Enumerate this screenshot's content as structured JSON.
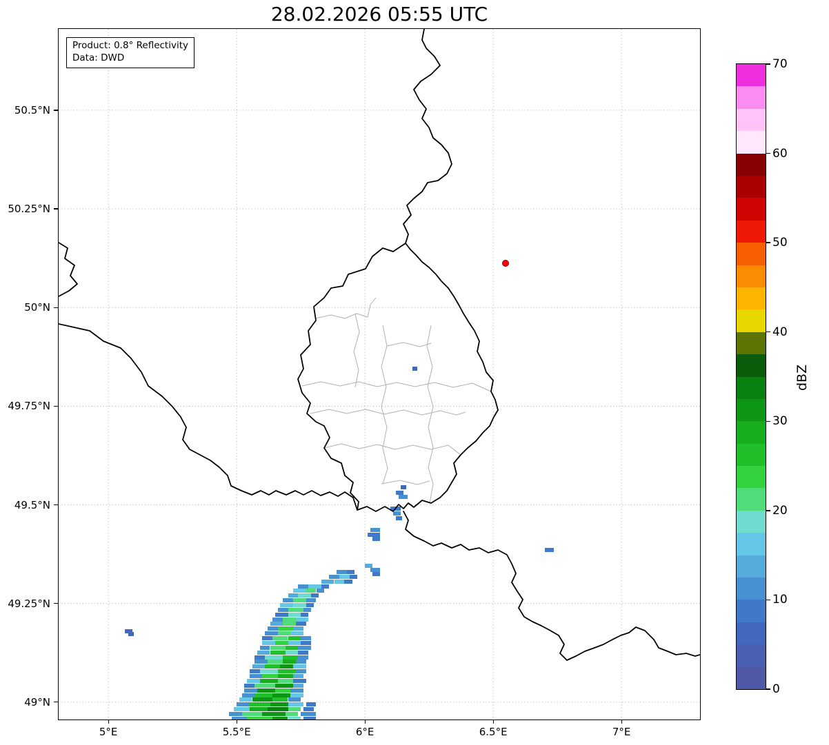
{
  "chart_data": {
    "type": "heatmap",
    "title": "28.02.2026 05:55 UTC",
    "annotation": {
      "product": "Product: 0.8° Reflectivity",
      "source": "Data: DWD"
    },
    "xlabel": "",
    "ylabel": "",
    "grid": true,
    "xlim": [
      4.806,
      7.306
    ],
    "ylim": [
      48.956,
      50.706
    ],
    "x_ticks": [
      {
        "value": 5.0,
        "label": "5°E"
      },
      {
        "value": 5.5,
        "label": "5.5°E"
      },
      {
        "value": 6.0,
        "label": "6°E"
      },
      {
        "value": 6.5,
        "label": "6.5°E"
      },
      {
        "value": 7.0,
        "label": "7°E"
      }
    ],
    "y_ticks": [
      {
        "value": 50.5,
        "label": "50.5°N"
      },
      {
        "value": 50.25,
        "label": "50.25°N"
      },
      {
        "value": 50.0,
        "label": "50°N"
      },
      {
        "value": 49.75,
        "label": "49.75°N"
      },
      {
        "value": 49.5,
        "label": "49.5°N"
      },
      {
        "value": 49.25,
        "label": "49.25°N"
      },
      {
        "value": 49.0,
        "label": "49°N"
      }
    ],
    "radar_site": {
      "lon": 6.547,
      "lat": 50.112,
      "color": "#ff0000"
    },
    "colorbar": {
      "label": "dBZ",
      "min": 0,
      "max": 70,
      "ticks": [
        0,
        10,
        20,
        30,
        40,
        50,
        60,
        70
      ],
      "bands": [
        {
          "from": 0,
          "to": 2.5,
          "color": "#5158a6"
        },
        {
          "from": 2.5,
          "to": 5,
          "color": "#4a5fb1"
        },
        {
          "from": 5,
          "to": 7.5,
          "color": "#4268bc"
        },
        {
          "from": 7.5,
          "to": 10,
          "color": "#3f79c7"
        },
        {
          "from": 10,
          "to": 12.5,
          "color": "#4790d1"
        },
        {
          "from": 12.5,
          "to": 15,
          "color": "#55abdc"
        },
        {
          "from": 15,
          "to": 17.5,
          "color": "#65c6e6"
        },
        {
          "from": 17.5,
          "to": 20,
          "color": "#6fdccf"
        },
        {
          "from": 20,
          "to": 22.5,
          "color": "#50dc78"
        },
        {
          "from": 22.5,
          "to": 25,
          "color": "#33d23f"
        },
        {
          "from": 25,
          "to": 27.5,
          "color": "#21c02b"
        },
        {
          "from": 27.5,
          "to": 30,
          "color": "#16ad1f"
        },
        {
          "from": 30,
          "to": 32.5,
          "color": "#0d9715"
        },
        {
          "from": 32.5,
          "to": 35,
          "color": "#088110"
        },
        {
          "from": 35,
          "to": 37.5,
          "color": "#0a5c0a"
        },
        {
          "from": 37.5,
          "to": 40,
          "color": "#5d7504"
        },
        {
          "from": 40,
          "to": 42.5,
          "color": "#e8d800"
        },
        {
          "from": 42.5,
          "to": 45,
          "color": "#fbb500"
        },
        {
          "from": 45,
          "to": 47.5,
          "color": "#f98c00"
        },
        {
          "from": 47.5,
          "to": 50,
          "color": "#f75e00"
        },
        {
          "from": 50,
          "to": 52.5,
          "color": "#ef1807"
        },
        {
          "from": 52.5,
          "to": 55,
          "color": "#d10404"
        },
        {
          "from": 55,
          "to": 57.5,
          "color": "#ab0003"
        },
        {
          "from": 57.5,
          "to": 60,
          "color": "#870002"
        },
        {
          "from": 60,
          "to": 62.5,
          "color": "#ffe8fd"
        },
        {
          "from": 62.5,
          "to": 65,
          "color": "#ffc3f7"
        },
        {
          "from": 65,
          "to": 67.5,
          "color": "#fb8df0"
        },
        {
          "from": 67.5,
          "to": 70,
          "color": "#ef2fdd"
        }
      ]
    },
    "echo_format": [
      "lat",
      "lon_start",
      "lon_width_deg",
      "dbz"
    ],
    "echoes": [
      [
        48.958,
        5.48,
        0.06,
        10
      ],
      [
        48.958,
        5.54,
        0.1,
        24
      ],
      [
        48.958,
        5.64,
        0.06,
        30
      ],
      [
        48.958,
        5.7,
        0.05,
        18
      ],
      [
        48.958,
        5.76,
        0.05,
        9
      ],
      [
        48.97,
        5.47,
        0.05,
        12
      ],
      [
        48.97,
        5.52,
        0.08,
        22
      ],
      [
        48.97,
        5.6,
        0.09,
        31
      ],
      [
        48.97,
        5.69,
        0.05,
        20
      ],
      [
        48.97,
        5.75,
        0.06,
        10
      ],
      [
        48.982,
        5.49,
        0.06,
        15
      ],
      [
        48.982,
        5.55,
        0.07,
        28
      ],
      [
        48.982,
        5.62,
        0.08,
        33
      ],
      [
        48.982,
        5.7,
        0.05,
        22
      ],
      [
        48.982,
        5.76,
        0.04,
        9
      ],
      [
        48.994,
        5.5,
        0.05,
        10
      ],
      [
        48.994,
        5.55,
        0.08,
        25
      ],
      [
        48.994,
        5.63,
        0.07,
        30
      ],
      [
        48.994,
        5.7,
        0.06,
        16
      ],
      [
        48.994,
        5.77,
        0.04,
        8
      ],
      [
        49.006,
        5.51,
        0.05,
        17
      ],
      [
        49.006,
        5.56,
        0.08,
        30
      ],
      [
        49.006,
        5.64,
        0.06,
        26
      ],
      [
        49.006,
        5.7,
        0.05,
        12
      ],
      [
        49.018,
        5.52,
        0.05,
        10
      ],
      [
        49.018,
        5.57,
        0.07,
        27
      ],
      [
        49.018,
        5.64,
        0.07,
        32
      ],
      [
        49.018,
        5.71,
        0.05,
        15
      ],
      [
        49.03,
        5.53,
        0.05,
        12
      ],
      [
        49.03,
        5.58,
        0.07,
        30
      ],
      [
        49.03,
        5.65,
        0.06,
        24
      ],
      [
        49.03,
        5.71,
        0.05,
        10
      ],
      [
        49.042,
        5.53,
        0.04,
        9
      ],
      [
        49.042,
        5.57,
        0.08,
        22
      ],
      [
        49.042,
        5.65,
        0.07,
        30
      ],
      [
        49.042,
        5.72,
        0.04,
        14
      ],
      [
        49.054,
        5.54,
        0.05,
        16
      ],
      [
        49.054,
        5.59,
        0.07,
        28
      ],
      [
        49.054,
        5.66,
        0.06,
        20
      ],
      [
        49.054,
        5.72,
        0.05,
        9
      ],
      [
        49.066,
        5.55,
        0.05,
        11
      ],
      [
        49.066,
        5.6,
        0.06,
        24
      ],
      [
        49.066,
        5.66,
        0.06,
        29
      ],
      [
        49.066,
        5.72,
        0.04,
        13
      ],
      [
        49.078,
        5.55,
        0.04,
        8
      ],
      [
        49.078,
        5.59,
        0.07,
        18
      ],
      [
        49.078,
        5.66,
        0.07,
        27
      ],
      [
        49.078,
        5.73,
        0.04,
        12
      ],
      [
        49.09,
        5.56,
        0.05,
        14
      ],
      [
        49.09,
        5.61,
        0.06,
        26
      ],
      [
        49.09,
        5.67,
        0.05,
        31
      ],
      [
        49.09,
        5.72,
        0.05,
        16
      ],
      [
        49.102,
        5.57,
        0.05,
        10
      ],
      [
        49.102,
        5.62,
        0.06,
        22
      ],
      [
        49.102,
        5.68,
        0.05,
        28
      ],
      [
        49.102,
        5.73,
        0.04,
        12
      ],
      [
        49.114,
        5.57,
        0.04,
        9
      ],
      [
        49.114,
        5.61,
        0.07,
        19
      ],
      [
        49.114,
        5.68,
        0.06,
        26
      ],
      [
        49.114,
        5.74,
        0.04,
        10
      ],
      [
        49.126,
        5.58,
        0.05,
        13
      ],
      [
        49.126,
        5.63,
        0.06,
        25
      ],
      [
        49.126,
        5.69,
        0.05,
        18
      ],
      [
        49.126,
        5.74,
        0.04,
        8
      ],
      [
        49.138,
        5.59,
        0.04,
        10
      ],
      [
        49.138,
        5.63,
        0.06,
        21
      ],
      [
        49.138,
        5.69,
        0.05,
        27
      ],
      [
        49.138,
        5.74,
        0.05,
        12
      ],
      [
        49.15,
        5.6,
        0.05,
        15
      ],
      [
        49.15,
        5.65,
        0.05,
        24
      ],
      [
        49.15,
        5.7,
        0.05,
        17
      ],
      [
        49.15,
        5.75,
        0.04,
        9
      ],
      [
        49.162,
        5.6,
        0.04,
        9
      ],
      [
        49.162,
        5.64,
        0.06,
        20
      ],
      [
        49.162,
        5.7,
        0.05,
        25
      ],
      [
        49.162,
        5.75,
        0.04,
        11
      ],
      [
        49.174,
        5.61,
        0.05,
        12
      ],
      [
        49.174,
        5.66,
        0.05,
        22
      ],
      [
        49.174,
        5.71,
        0.05,
        16
      ],
      [
        49.186,
        5.62,
        0.04,
        10
      ],
      [
        49.186,
        5.66,
        0.06,
        24
      ],
      [
        49.186,
        5.72,
        0.04,
        13
      ],
      [
        49.198,
        5.63,
        0.05,
        14
      ],
      [
        49.198,
        5.68,
        0.05,
        20
      ],
      [
        49.198,
        5.73,
        0.04,
        9
      ],
      [
        49.21,
        5.64,
        0.04,
        11
      ],
      [
        49.21,
        5.68,
        0.05,
        22
      ],
      [
        49.21,
        5.73,
        0.05,
        15
      ],
      [
        49.222,
        5.65,
        0.05,
        9
      ],
      [
        49.222,
        5.7,
        0.05,
        18
      ],
      [
        49.222,
        5.75,
        0.03,
        8
      ],
      [
        49.234,
        5.66,
        0.04,
        12
      ],
      [
        49.234,
        5.7,
        0.06,
        21
      ],
      [
        49.234,
        5.76,
        0.03,
        10
      ],
      [
        49.246,
        5.67,
        0.05,
        16
      ],
      [
        49.246,
        5.72,
        0.05,
        19
      ],
      [
        49.246,
        5.77,
        0.03,
        9
      ],
      [
        49.258,
        5.68,
        0.04,
        10
      ],
      [
        49.258,
        5.72,
        0.05,
        22
      ],
      [
        49.258,
        5.77,
        0.04,
        12
      ],
      [
        49.27,
        5.7,
        0.04,
        13
      ],
      [
        49.27,
        5.74,
        0.05,
        18
      ],
      [
        49.27,
        5.79,
        0.03,
        8
      ],
      [
        49.282,
        5.72,
        0.05,
        15
      ],
      [
        49.282,
        5.77,
        0.04,
        20
      ],
      [
        49.282,
        5.81,
        0.03,
        10
      ],
      [
        49.294,
        5.74,
        0.04,
        11
      ],
      [
        49.294,
        5.78,
        0.05,
        17
      ],
      [
        49.294,
        5.83,
        0.03,
        9
      ],
      [
        49.306,
        5.83,
        0.05,
        14
      ],
      [
        49.306,
        5.88,
        0.04,
        16
      ],
      [
        49.306,
        5.92,
        0.03,
        9
      ],
      [
        49.318,
        5.86,
        0.04,
        10
      ],
      [
        49.318,
        5.9,
        0.04,
        15
      ],
      [
        49.318,
        5.94,
        0.03,
        8
      ],
      [
        49.33,
        5.89,
        0.04,
        12
      ],
      [
        49.33,
        5.93,
        0.03,
        9
      ],
      [
        49.53,
        6.12,
        0.03,
        8
      ],
      [
        49.52,
        6.13,
        0.035,
        10
      ],
      [
        49.545,
        6.14,
        0.02,
        7
      ],
      [
        49.49,
        6.1,
        0.04,
        9
      ],
      [
        49.478,
        6.11,
        0.03,
        12
      ],
      [
        49.466,
        6.12,
        0.025,
        8
      ],
      [
        49.437,
        6.02,
        0.04,
        12
      ],
      [
        49.425,
        6.01,
        0.05,
        9
      ],
      [
        49.413,
        6.03,
        0.03,
        8
      ],
      [
        49.345,
        6.0,
        0.03,
        13
      ],
      [
        49.335,
        6.02,
        0.04,
        10
      ],
      [
        49.325,
        6.03,
        0.03,
        8
      ],
      [
        49.18,
        5.065,
        0.03,
        6
      ],
      [
        49.172,
        5.078,
        0.02,
        6
      ],
      [
        49.385,
        6.7,
        0.035,
        8
      ],
      [
        49.845,
        6.185,
        0.02,
        7
      ]
    ]
  }
}
